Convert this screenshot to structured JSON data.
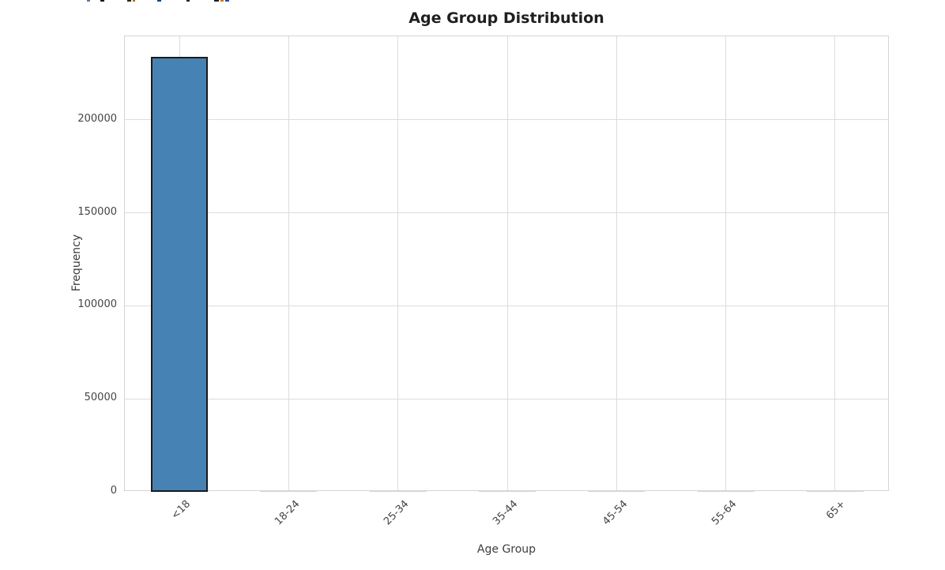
{
  "page": {
    "background_color": "#ffffff"
  },
  "chart_data": {
    "type": "bar",
    "title": "Age Group Distribution",
    "xlabel": "Age Group",
    "ylabel": "Frequency",
    "categories": [
      "<18",
      "18-24",
      "25-34",
      "35-44",
      "45-54",
      "55-64",
      "65+"
    ],
    "values": [
      234000,
      800,
      800,
      800,
      800,
      800,
      800
    ],
    "yticks": [
      0,
      50000,
      100000,
      150000,
      200000
    ],
    "ytick_labels": [
      "0",
      "50000",
      "100000",
      "150000",
      "200000"
    ],
    "ylim": [
      0,
      245000
    ],
    "grid": true,
    "legend": "none",
    "x_tick_rotation": 45,
    "bar_color": "#4682b4",
    "bar_edge_color": "#1a1a1a",
    "near_zero_bar_color": "#d6d6d6",
    "grid_color": "#dcdcdc",
    "spine_color": "#d4d4d4",
    "tick_text_color": "#444444",
    "title_color": "#1f1f1f"
  },
  "artifacts": {
    "top_edge_clipped_text_fragments": [
      {
        "x": 110,
        "w": 4,
        "color": "#5a7a9a"
      },
      {
        "x": 127,
        "w": 5,
        "color": "#16181c"
      },
      {
        "x": 161,
        "w": 5,
        "color": "#2a2721"
      },
      {
        "x": 168,
        "w": 3,
        "color": "#b06a20"
      },
      {
        "x": 199,
        "w": 5,
        "color": "#1a3f8f"
      },
      {
        "x": 236,
        "w": 4,
        "color": "#23272e"
      },
      {
        "x": 271,
        "w": 6,
        "color": "#1d2026"
      },
      {
        "x": 279,
        "w": 4,
        "color": "#c77722"
      },
      {
        "x": 285,
        "w": 5,
        "color": "#2b4ea0"
      }
    ]
  }
}
